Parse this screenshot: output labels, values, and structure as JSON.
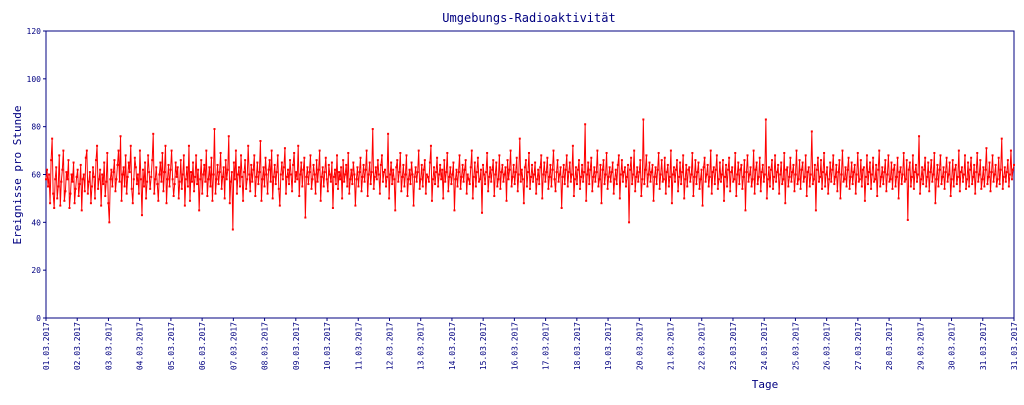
{
  "chart_data": {
    "type": "line",
    "title": "Umgebungs-Radioaktivität",
    "xlabel": "Tage",
    "ylabel": "Ereignisse pro Stunde",
    "ylim": [
      0,
      120
    ],
    "yticks": [
      0,
      20,
      40,
      60,
      80,
      100,
      120
    ],
    "xticks": [
      "01.03.2017",
      "02.03.2017",
      "03.03.2017",
      "04.03.2017",
      "05.03.2017",
      "06.03.2017",
      "07.03.2017",
      "08.03.2017",
      "09.03.2017",
      "10.03.2017",
      "11.03.2017",
      "12.03.2017",
      "13.03.2017",
      "14.03.2017",
      "15.03.2017",
      "16.03.2017",
      "17.03.2017",
      "18.03.2017",
      "19.03.2017",
      "20.03.2017",
      "21.03.2017",
      "22.03.2017",
      "23.03.2017",
      "24.03.2017",
      "25.03.2017",
      "26.03.2017",
      "27.03.2017",
      "28.03.2017",
      "29.03.2017",
      "30.03.2017",
      "31.03.2017",
      "31.03.2017"
    ],
    "grid": false,
    "legend": "none",
    "series": [
      {
        "color": "#ff0000",
        "approximate": "hourly counts fluctuating roughly between 45 and 75, mean about 59",
        "values": [
          58,
          62,
          55,
          60,
          48,
          66,
          75,
          52,
          46,
          58,
          63,
          50,
          55,
          68,
          47,
          57,
          62,
          70,
          49,
          53,
          61,
          58,
          66,
          46,
          52,
          60,
          57,
          65,
          48,
          54,
          59,
          62,
          51,
          56,
          64,
          45,
          58,
          60,
          53,
          67,
          70,
          52,
          57,
          61,
          48,
          55,
          63,
          59,
          50,
          66,
          72,
          54,
          58,
          62,
          47,
          60,
          56,
          65,
          51,
          57,
          69,
          48,
          40,
          58,
          62,
          55,
          61,
          66,
          53,
          58,
          64,
          70,
          57,
          76,
          49,
          60,
          63,
          55,
          68,
          52,
          59,
          65,
          61,
          72,
          54,
          48,
          58,
          67,
          63,
          56,
          60,
          52,
          70,
          58,
          43,
          62,
          55,
          65,
          50,
          57,
          68,
          61,
          54,
          59,
          66,
          77,
          52,
          58,
          63,
          56,
          49,
          60,
          65,
          57,
          69,
          53,
          61,
          72,
          48,
          58,
          64,
          55,
          62,
          70,
          58,
          51,
          56,
          65,
          59,
          63,
          50,
          57,
          66,
          54,
          60,
          68,
          47,
          58,
          63,
          55,
          72,
          49,
          61,
          57,
          65,
          53,
          59,
          68,
          56,
          62,
          45,
          58,
          66,
          52,
          60,
          64,
          57,
          70,
          51,
          58,
          63,
          55,
          67,
          49,
          60,
          79,
          52,
          58,
          64,
          56,
          61,
          69,
          54,
          59,
          63,
          50,
          66,
          58,
          62,
          76,
          48,
          57,
          61,
          37,
          65,
          58,
          70,
          52,
          60,
          63,
          55,
          68,
          59,
          49,
          61,
          66,
          54,
          58,
          72,
          60,
          53,
          64,
          57,
          62,
          68,
          51,
          59,
          65,
          56,
          61,
          74,
          49,
          58,
          63,
          55,
          67,
          60,
          52,
          62,
          66,
          57,
          70,
          50,
          59,
          64,
          56,
          61,
          68,
          54,
          47,
          60,
          65,
          58,
          63,
          71,
          52,
          59,
          62,
          56,
          66,
          60,
          53,
          64,
          69,
          57,
          61,
          58,
          72,
          51,
          60,
          65,
          55,
          62,
          67,
          42,
          59,
          63,
          56,
          61,
          68,
          54,
          58,
          64,
          60,
          52,
          66,
          57,
          62,
          70,
          49,
          59,
          63,
          55,
          61,
          67,
          58,
          53,
          64,
          60,
          57,
          65,
          46,
          59,
          62,
          56,
          68,
          54,
          61,
          58,
          63,
          50,
          66,
          57,
          60,
          64,
          55,
          69,
          52,
          58,
          62,
          56,
          65,
          60,
          47,
          58,
          63,
          55,
          61,
          67,
          53,
          59,
          64,
          57,
          62,
          70,
          51,
          60,
          65,
          56,
          61,
          79,
          54,
          59,
          63,
          58,
          66,
          60,
          52,
          64,
          68,
          57,
          61,
          62,
          55,
          59,
          77,
          50,
          60,
          65,
          56,
          62,
          58,
          45,
          63,
          66,
          57,
          61,
          69,
          53,
          59,
          64,
          55,
          60,
          68,
          51,
          58,
          62,
          56,
          65,
          60,
          47,
          59,
          63,
          57,
          61,
          70,
          54,
          58,
          64,
          55,
          62,
          66,
          52,
          60,
          59,
          57,
          65,
          72,
          49,
          58,
          63,
          56,
          61,
          67,
          55,
          60,
          64,
          58,
          62,
          50,
          66,
          57,
          61,
          69,
          53,
          59,
          63,
          56,
          60,
          65,
          45,
          58,
          62,
          55,
          61,
          68,
          54,
          59,
          64,
          57,
          62,
          66,
          52,
          60,
          58,
          56,
          63,
          70,
          50,
          59,
          65,
          55,
          61,
          67,
          57,
          58,
          62,
          44,
          64,
          60,
          56,
          61,
          69,
          53,
          59,
          63,
          57,
          62,
          66,
          51,
          60,
          65,
          55,
          58,
          68,
          54,
          61,
          64,
          57,
          60,
          63,
          49,
          66,
          58,
          62,
          70,
          55,
          59,
          64,
          56,
          61,
          67,
          53,
          60,
          75,
          57,
          62,
          58,
          48,
          63,
          66,
          55,
          61,
          69,
          54,
          59,
          64,
          57,
          60,
          65,
          52,
          58,
          62,
          56,
          63,
          68,
          50,
          60,
          65,
          57,
          61,
          67,
          54,
          59,
          64,
          55,
          62,
          70,
          58,
          53,
          61,
          66,
          57,
          60,
          63,
          46,
          59,
          64,
          56,
          62,
          68,
          55,
          61,
          65,
          57,
          60,
          72,
          51,
          58,
          63,
          56,
          62,
          66,
          54,
          59,
          64,
          57,
          61,
          81,
          49,
          60,
          65,
          56,
          62,
          67,
          53,
          59,
          63,
          57,
          61,
          70,
          55,
          58,
          64,
          48,
          62,
          66,
          56,
          60,
          69,
          54,
          59,
          63,
          57,
          61,
          65,
          52,
          58,
          62,
          56,
          64,
          68,
          50,
          60,
          66,
          57,
          61,
          63,
          55,
          59,
          64,
          40,
          62,
          67,
          56,
          60,
          70,
          53,
          59,
          63,
          57,
          61,
          66,
          51,
          58,
          83,
          56,
          62,
          68,
          55,
          60,
          65,
          57,
          61,
          64,
          49,
          59,
          63,
          56,
          62,
          69,
          54,
          60,
          66,
          57,
          58,
          67,
          52,
          61,
          64,
          55,
          59,
          70,
          48,
          60,
          63,
          57,
          62,
          66,
          53,
          59,
          65,
          56,
          61,
          68,
          50,
          58,
          64,
          55,
          62,
          63,
          57,
          60,
          69,
          51,
          59,
          66,
          56,
          61,
          65,
          54,
          58,
          62,
          47,
          63,
          67,
          57,
          60,
          64,
          55,
          59,
          70,
          52,
          61,
          63,
          56,
          62,
          68,
          54,
          58,
          65,
          57,
          60,
          66,
          49,
          59,
          64,
          55,
          62,
          67,
          53,
          61,
          63,
          57,
          58,
          69,
          51,
          60,
          65,
          56,
          62,
          64,
          54,
          59,
          66,
          45,
          61,
          68,
          57,
          60,
          63,
          55,
          58,
          70,
          52,
          62,
          65,
          56,
          59,
          67,
          53,
          61,
          64,
          57,
          60,
          83,
          50,
          58,
          63,
          55,
          62,
          66,
          54,
          59,
          68,
          57,
          61,
          64,
          52,
          60,
          65,
          56,
          58,
          69,
          48,
          62,
          63,
          55,
          59,
          67,
          57,
          61,
          64,
          53,
          60,
          70,
          56,
          58,
          66,
          54,
          62,
          65,
          57,
          59,
          68,
          51,
          61,
          63,
          55,
          60,
          78,
          56,
          58,
          64,
          45,
          62,
          67,
          57,
          59,
          66,
          54,
          61,
          69,
          55,
          60,
          63,
          52,
          58,
          65,
          57,
          62,
          68,
          56,
          59,
          64,
          53,
          61,
          66,
          50,
          60,
          70,
          57,
          58,
          63,
          55,
          62,
          67,
          54,
          59,
          65,
          56,
          61,
          64,
          52,
          60,
          69,
          57,
          58,
          66,
          55,
          62,
          63,
          49,
          59,
          68,
          56,
          61,
          65,
          54,
          60,
          67,
          57,
          58,
          64,
          51,
          62,
          70,
          55,
          59,
          63,
          56,
          61,
          66,
          53,
          60,
          68,
          57,
          58,
          65,
          54,
          62,
          64,
          55,
          59,
          67,
          50,
          61,
          63,
          56,
          60,
          69,
          57,
          58,
          66,
          41,
          62,
          65,
          55,
          59,
          68,
          54,
          61,
          64,
          57,
          60,
          76,
          52,
          58,
          63,
          56,
          62,
          67,
          55,
          59,
          65,
          53,
          61,
          66,
          57,
          60,
          69,
          48,
          58,
          64,
          55,
          62,
          68,
          56,
          59,
          63,
          54,
          61,
          67,
          57,
          60,
          65,
          51,
          58,
          66,
          55,
          62,
          64,
          56,
          59,
          70,
          53,
          61,
          63,
          57,
          60,
          68,
          54,
          58,
          65,
          55,
          62,
          67,
          56,
          59,
          64,
          52,
          61,
          69,
          57,
          60,
          66,
          54,
          58,
          63,
          55,
          62,
          71,
          56,
          59,
          65,
          53,
          61,
          68,
          57,
          60,
          64,
          55,
          58,
          67,
          56,
          62,
          75,
          54,
          59,
          63,
          57,
          61,
          66,
          55,
          60,
          70,
          58,
          62,
          64
        ]
      }
    ]
  }
}
